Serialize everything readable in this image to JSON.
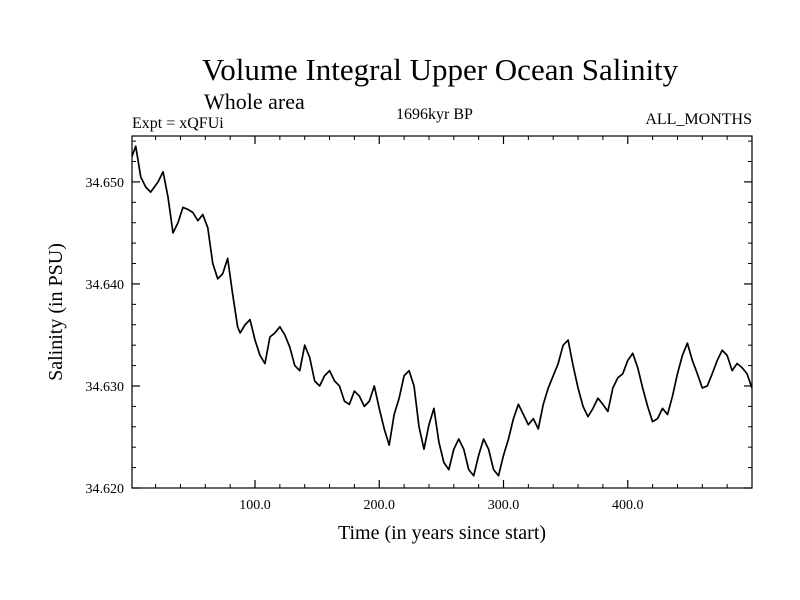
{
  "chart_data": {
    "type": "line",
    "title": "Volume Integral Upper Ocean Salinity",
    "subtitle": "Whole area",
    "experiment_label": "Expt = xQFUi",
    "period_label": "1696kyr BP",
    "months_label": "ALL_MONTHS",
    "xlabel": "Time (in years since start)",
    "ylabel": "Salinity (in PSU)",
    "xlim": [
      1,
      500
    ],
    "ylim": [
      34.62,
      34.6545
    ],
    "x_ticks": [
      100,
      200,
      300,
      400
    ],
    "x_tick_labels": [
      "100.0",
      "200.0",
      "300.0",
      "400.0"
    ],
    "y_ticks": [
      34.62,
      34.63,
      34.64,
      34.65
    ],
    "y_tick_labels": [
      "34.620",
      "34.630",
      "34.640",
      "34.650"
    ],
    "line_color": "#000000",
    "series": [
      {
        "name": "Salinity",
        "x": [
          1,
          4,
          8,
          12,
          16,
          22,
          26,
          30,
          34,
          38,
          42,
          46,
          50,
          54,
          58,
          62,
          66,
          70,
          74,
          78,
          82,
          86,
          88,
          92,
          96,
          100,
          104,
          108,
          112,
          116,
          120,
          124,
          128,
          132,
          136,
          140,
          144,
          148,
          152,
          156,
          160,
          164,
          168,
          172,
          176,
          180,
          184,
          188,
          192,
          196,
          200,
          204,
          208,
          212,
          216,
          220,
          224,
          228,
          232,
          236,
          240,
          244,
          248,
          252,
          256,
          260,
          264,
          268,
          272,
          276,
          280,
          284,
          288,
          292,
          296,
          300,
          304,
          308,
          312,
          316,
          320,
          324,
          328,
          332,
          336,
          340,
          344,
          348,
          352,
          356,
          360,
          364,
          368,
          372,
          376,
          380,
          384,
          388,
          392,
          396,
          400,
          404,
          408,
          412,
          416,
          420,
          424,
          428,
          432,
          436,
          440,
          444,
          448,
          452,
          456,
          460,
          464,
          468,
          472,
          476,
          480,
          484,
          488,
          492,
          496,
          500
        ],
        "values": [
          34.6525,
          34.6535,
          34.6505,
          34.6495,
          34.649,
          34.65,
          34.651,
          34.6485,
          34.645,
          34.646,
          34.6475,
          34.6473,
          34.647,
          34.6462,
          34.6468,
          34.6455,
          34.642,
          34.6405,
          34.641,
          34.6425,
          34.639,
          34.6358,
          34.6352,
          34.636,
          34.6365,
          34.6345,
          34.633,
          34.6322,
          34.6348,
          34.6352,
          34.6358,
          34.635,
          34.6338,
          34.632,
          34.6315,
          34.634,
          34.6328,
          34.6305,
          34.63,
          34.631,
          34.6315,
          34.6305,
          34.63,
          34.6285,
          34.6282,
          34.6295,
          34.629,
          34.628,
          34.6285,
          34.63,
          34.6278,
          34.6258,
          34.6242,
          34.6272,
          34.6288,
          34.631,
          34.6315,
          34.63,
          34.626,
          34.6238,
          34.6262,
          34.6278,
          34.6245,
          34.6225,
          34.6218,
          34.6238,
          34.6248,
          34.6238,
          34.6218,
          34.6212,
          34.6232,
          34.6248,
          34.6238,
          34.6218,
          34.6212,
          34.6232,
          34.6248,
          34.6268,
          34.6282,
          34.6272,
          34.6262,
          34.6268,
          34.6258,
          34.6282,
          34.6298,
          34.631,
          34.6322,
          34.634,
          34.6345,
          34.632,
          34.6298,
          34.628,
          34.627,
          34.6278,
          34.6288,
          34.6282,
          34.6275,
          34.6298,
          34.6308,
          34.6312,
          34.6325,
          34.6332,
          34.6318,
          34.6298,
          34.628,
          34.6265,
          34.6268,
          34.6278,
          34.6272,
          34.629,
          34.6312,
          34.633,
          34.6342,
          34.6325,
          34.6312,
          34.6298,
          34.63,
          34.6312,
          34.6325,
          34.6335,
          34.633,
          34.6315,
          34.6322,
          34.6318,
          34.6312,
          34.6298
        ]
      }
    ]
  }
}
